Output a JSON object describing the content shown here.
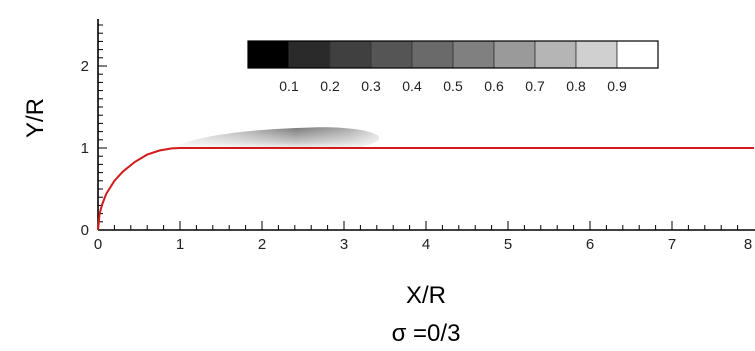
{
  "chart_data": {
    "type": "line",
    "xlabel": "X/R",
    "ylabel": "Y/R",
    "caption": "σ =0/3",
    "xlim": [
      0,
      8
    ],
    "ylim": [
      0,
      2.5
    ],
    "x_ticks": [
      "0",
      "1",
      "2",
      "3",
      "4",
      "5",
      "6",
      "7",
      "8"
    ],
    "y_ticks": [
      "0",
      "1",
      "2"
    ],
    "colorbar": {
      "labels": [
        "0.1",
        "0.2",
        "0.3",
        "0.4",
        "0.5",
        "0.6",
        "0.7",
        "0.8",
        "0.9"
      ],
      "colors": [
        "#000000",
        "#2a2a2a",
        "#404040",
        "#555555",
        "#6a6a6a",
        "#808080",
        "#9a9a9a",
        "#b5b5b5",
        "#d0d0d0",
        "#ffffff"
      ]
    },
    "body_contour": {
      "color": "#d11a1a",
      "description_points_x": [
        0,
        0.02,
        0.05,
        0.1,
        0.2,
        0.3,
        0.45,
        0.6,
        0.75,
        0.9,
        1.0,
        8.0
      ],
      "description_points_y": [
        0,
        0.2,
        0.31,
        0.44,
        0.6,
        0.71,
        0.83,
        0.92,
        0.97,
        0.995,
        1.0,
        1.0
      ]
    },
    "cavity": {
      "x_start": 0.9,
      "x_end": 3.45,
      "y_base": 1.0,
      "y_top_max": 1.25
    }
  }
}
